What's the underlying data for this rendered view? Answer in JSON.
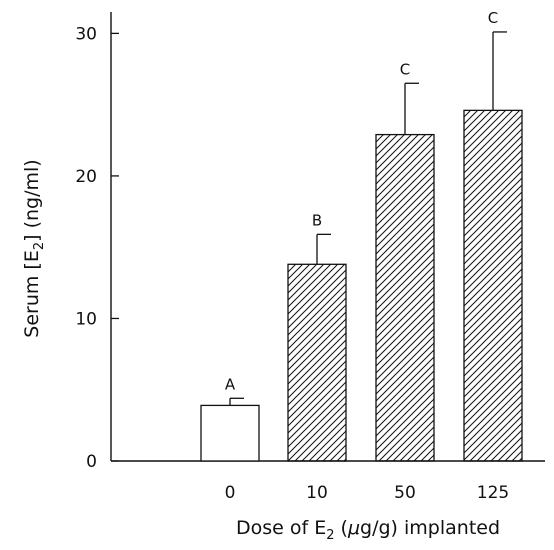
{
  "chart_data": {
    "type": "bar",
    "categories": [
      "0",
      "10",
      "50",
      "125"
    ],
    "values": [
      3.9,
      13.8,
      22.9,
      24.6
    ],
    "error_upper": [
      4.4,
      15.9,
      26.5,
      30.1
    ],
    "significance_letters": [
      "A",
      "B",
      "C",
      "C"
    ],
    "fills": [
      "empty",
      "hatched",
      "hatched",
      "hatched"
    ],
    "ylim": [
      0,
      31.5
    ],
    "yticks": [
      0,
      10,
      20,
      30
    ],
    "xlabel": {
      "prefix": "Dose of E",
      "subscript": "2",
      "middle": " (",
      "mu": "μ",
      "suffix": "g/g) implanted"
    },
    "ylabel": {
      "prefix": "Serum [E",
      "subscript": "2",
      "suffix": "] (ng/ml)"
    },
    "grid": false,
    "legend": "none",
    "colors": {
      "stroke": "#111111",
      "bar_fill": "#ffffff"
    }
  }
}
